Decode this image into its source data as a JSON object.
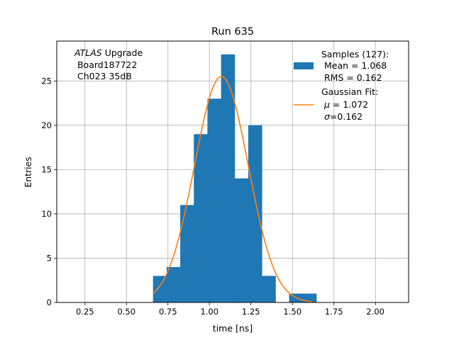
{
  "chart_data": {
    "type": "histogram",
    "title": "Run 635",
    "xlabel": "time [ns]",
    "ylabel": "Entries",
    "xlim": [
      0.08,
      2.2
    ],
    "ylim": [
      0,
      29.5
    ],
    "xticks": [
      0.25,
      0.5,
      0.75,
      1.0,
      1.25,
      1.5,
      1.75,
      2.0
    ],
    "xtick_labels": [
      "0.25",
      "0.50",
      "0.75",
      "1.00",
      "1.25",
      "1.50",
      "1.75",
      "2.00"
    ],
    "yticks": [
      0,
      5,
      10,
      15,
      20,
      25
    ],
    "ytick_labels": [
      "0",
      "5",
      "10",
      "15",
      "20",
      "25"
    ],
    "grid": true,
    "bins": {
      "edges": [
        0.66,
        0.742,
        0.824,
        0.906,
        0.988,
        1.07,
        1.152,
        1.234,
        1.316,
        1.398,
        1.48,
        1.562,
        1.644
      ],
      "counts": [
        3,
        4,
        11,
        19,
        23,
        28,
        14,
        20,
        3,
        0,
        1,
        1
      ],
      "color": "#1f77b4"
    },
    "fit": {
      "mu": 1.072,
      "sigma": 0.162,
      "peak": 25.5,
      "x_range": [
        0.66,
        1.62
      ],
      "color": "#ff7f0e"
    },
    "annotation": {
      "atlas": "ATLAS",
      "upgrade": " Upgrade",
      "board": " Board187722",
      "channel": " Ch023 35dB"
    },
    "legend": {
      "position": "upper right",
      "samples_title": "Samples (127):",
      "samples_mean": " Mean = 1.068",
      "samples_rms": " RMS = 0.162",
      "fit_title": "Gaussian Fit:",
      "fit_mu_label": "μ",
      "fit_mu_value": " = 1.072",
      "fit_sigma_label": "σ",
      "fit_sigma_value": "=0.162"
    }
  }
}
